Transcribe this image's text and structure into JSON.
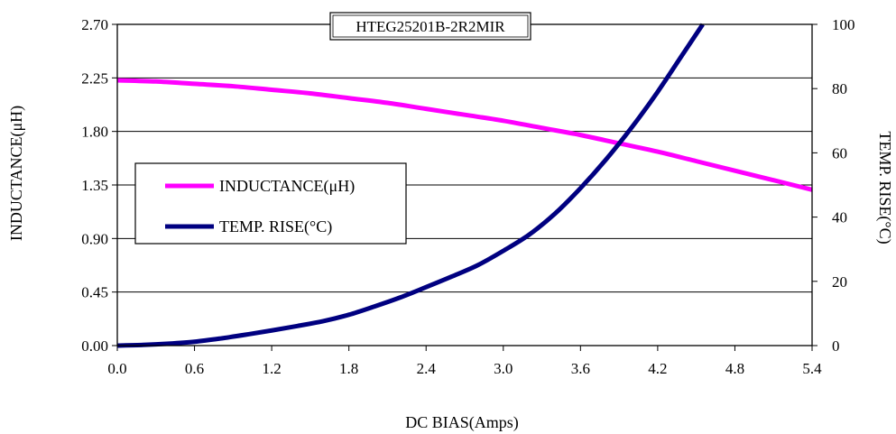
{
  "chart_data": {
    "type": "line",
    "title": "HTEG25201B-2R2MIR",
    "xlabel": "DC BIAS(Amps)",
    "ylabel_left": "INDUCTANCE(μH)",
    "ylabel_right": "TEMP. RISE(°C)",
    "xlim": [
      0,
      5.4
    ],
    "ylim_left": [
      0,
      2.7
    ],
    "ylim_right": [
      0,
      100
    ],
    "x_ticks": [
      "0.0",
      "0.6",
      "1.2",
      "1.8",
      "2.4",
      "3.0",
      "3.6",
      "4.2",
      "4.8",
      "5.4"
    ],
    "y_left_ticks": [
      "0.00",
      "0.45",
      "0.90",
      "1.35",
      "1.80",
      "2.25",
      "2.70"
    ],
    "y_right_ticks": [
      "0",
      "20",
      "40",
      "60",
      "80",
      "100"
    ],
    "grid": "horizontal",
    "legend_position": "left-center",
    "series": [
      {
        "name": "INDUCTANCE(μH)",
        "axis": "left",
        "color": "#ff00ff",
        "x": [
          0.0,
          0.3,
          0.6,
          0.9,
          1.2,
          1.5,
          1.8,
          2.1,
          2.4,
          2.7,
          3.0,
          3.3,
          3.6,
          3.9,
          4.2,
          4.5,
          4.8,
          5.1,
          5.4
        ],
        "y": [
          2.23,
          2.22,
          2.2,
          2.18,
          2.15,
          2.12,
          2.08,
          2.04,
          1.99,
          1.94,
          1.89,
          1.83,
          1.77,
          1.7,
          1.63,
          1.55,
          1.47,
          1.39,
          1.31
        ]
      },
      {
        "name": "TEMP. RISE(°C)",
        "axis": "right",
        "color": "#000080",
        "x": [
          0.0,
          0.2,
          0.4,
          0.6,
          0.8,
          1.0,
          1.2,
          1.4,
          1.6,
          1.8,
          2.0,
          2.2,
          2.4,
          2.6,
          2.8,
          3.0,
          3.2,
          3.4,
          3.6,
          3.8,
          4.0,
          4.2,
          4.4,
          4.55
        ],
        "y": [
          0,
          0.2,
          0.6,
          1.2,
          2.2,
          3.4,
          4.7,
          6.1,
          7.6,
          9.6,
          12.2,
          15.0,
          18.2,
          21.5,
          25.0,
          29.5,
          34.5,
          41.0,
          49.0,
          58.0,
          68.0,
          79.0,
          91.0,
          100
        ]
      }
    ]
  }
}
